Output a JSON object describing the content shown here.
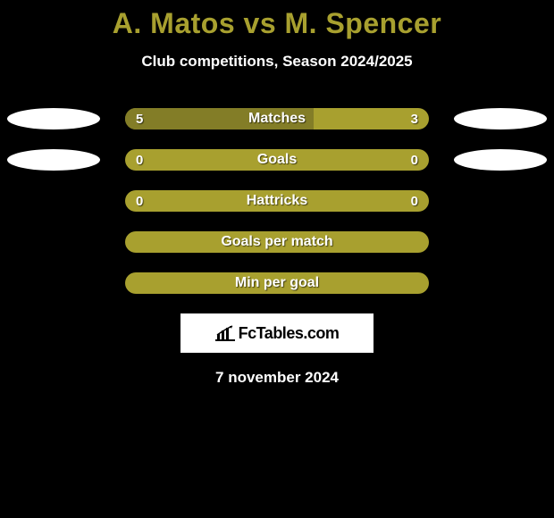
{
  "title_left": "A. Matos",
  "title_vs": "vs",
  "title_right": "M. Spencer",
  "subtitle": "Club competitions, Season 2024/2025",
  "date": "7 november 2024",
  "logo_text": "FcTables.com",
  "colors": {
    "background": "#000000",
    "accent": "#a8a02f",
    "bar_dark": "#837d27",
    "ellipse": "#ffffff",
    "text": "#ffffff"
  },
  "stats": [
    {
      "label": "Matches",
      "left_val": "5",
      "right_val": "3",
      "left_ellipse": true,
      "right_ellipse": true,
      "left_fill_pct": 62,
      "right_fill_pct": 0
    },
    {
      "label": "Goals",
      "left_val": "0",
      "right_val": "0",
      "left_ellipse": true,
      "right_ellipse": true,
      "left_fill_pct": 0,
      "right_fill_pct": 0
    },
    {
      "label": "Hattricks",
      "left_val": "0",
      "right_val": "0",
      "left_ellipse": false,
      "right_ellipse": false,
      "left_fill_pct": 0,
      "right_fill_pct": 0
    },
    {
      "label": "Goals per match",
      "left_val": "",
      "right_val": "",
      "left_ellipse": false,
      "right_ellipse": false,
      "left_fill_pct": 0,
      "right_fill_pct": 0
    },
    {
      "label": "Min per goal",
      "left_val": "",
      "right_val": "",
      "left_ellipse": false,
      "right_ellipse": false,
      "left_fill_pct": 0,
      "right_fill_pct": 0
    }
  ]
}
